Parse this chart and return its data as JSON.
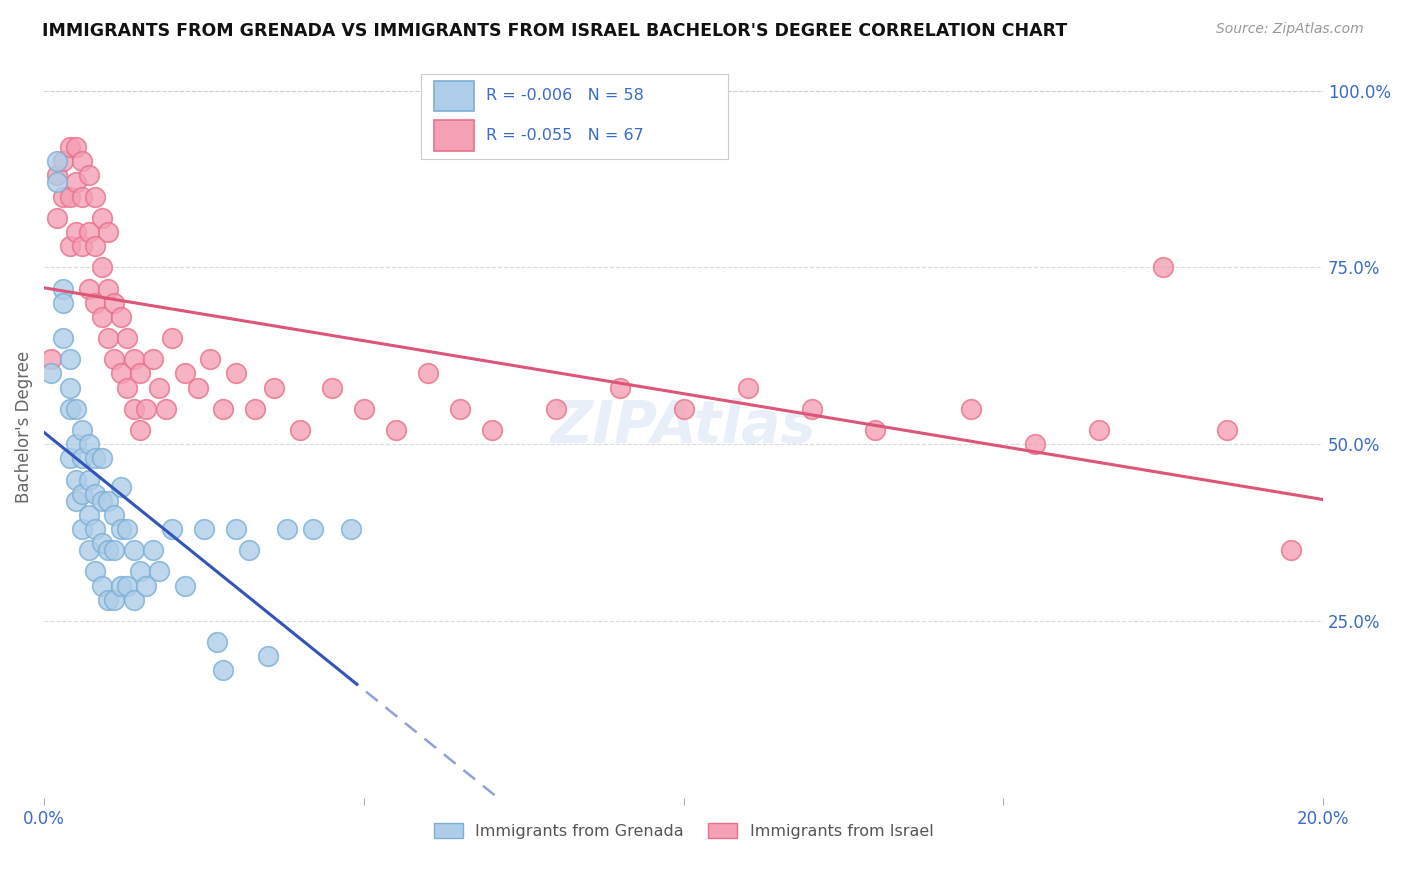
{
  "title": "IMMIGRANTS FROM GRENADA VS IMMIGRANTS FROM ISRAEL BACHELOR'S DEGREE CORRELATION CHART",
  "source": "Source: ZipAtlas.com",
  "ylabel": "Bachelor's Degree",
  "legend_label1": "Immigrants from Grenada",
  "legend_label2": "Immigrants from Israel",
  "legend_r1": "R = -0.006",
  "legend_n1": "N = 58",
  "legend_r2": "R = -0.055",
  "legend_n2": "N = 67",
  "color_blue_fill": "#aecde8",
  "color_blue_edge": "#7bafd4",
  "color_pink_fill": "#f4a0b5",
  "color_pink_edge": "#e8708a",
  "color_line_blue": "#3355bb",
  "color_line_pink": "#dd5577",
  "color_text_blue": "#3a6bc8",
  "color_grid": "#cccccc",
  "grenada_x": [
    0.001,
    0.002,
    0.002,
    0.003,
    0.003,
    0.003,
    0.004,
    0.004,
    0.004,
    0.004,
    0.005,
    0.005,
    0.005,
    0.005,
    0.006,
    0.006,
    0.006,
    0.006,
    0.007,
    0.007,
    0.007,
    0.007,
    0.008,
    0.008,
    0.008,
    0.008,
    0.009,
    0.009,
    0.009,
    0.009,
    0.01,
    0.01,
    0.01,
    0.011,
    0.011,
    0.011,
    0.012,
    0.012,
    0.012,
    0.013,
    0.013,
    0.014,
    0.014,
    0.015,
    0.016,
    0.017,
    0.018,
    0.02,
    0.022,
    0.025,
    0.027,
    0.028,
    0.03,
    0.032,
    0.035,
    0.038,
    0.042,
    0.048
  ],
  "grenada_y": [
    0.6,
    0.87,
    0.9,
    0.72,
    0.65,
    0.7,
    0.55,
    0.62,
    0.48,
    0.58,
    0.42,
    0.5,
    0.45,
    0.55,
    0.38,
    0.43,
    0.48,
    0.52,
    0.35,
    0.4,
    0.45,
    0.5,
    0.32,
    0.38,
    0.43,
    0.48,
    0.3,
    0.36,
    0.42,
    0.48,
    0.28,
    0.35,
    0.42,
    0.28,
    0.35,
    0.4,
    0.3,
    0.38,
    0.44,
    0.3,
    0.38,
    0.28,
    0.35,
    0.32,
    0.3,
    0.35,
    0.32,
    0.38,
    0.3,
    0.38,
    0.22,
    0.18,
    0.38,
    0.35,
    0.2,
    0.38,
    0.38,
    0.38
  ],
  "israel_x": [
    0.001,
    0.002,
    0.002,
    0.003,
    0.003,
    0.004,
    0.004,
    0.004,
    0.005,
    0.005,
    0.005,
    0.006,
    0.006,
    0.006,
    0.007,
    0.007,
    0.007,
    0.008,
    0.008,
    0.008,
    0.009,
    0.009,
    0.009,
    0.01,
    0.01,
    0.01,
    0.011,
    0.011,
    0.012,
    0.012,
    0.013,
    0.013,
    0.014,
    0.014,
    0.015,
    0.015,
    0.016,
    0.017,
    0.018,
    0.019,
    0.02,
    0.022,
    0.024,
    0.026,
    0.028,
    0.03,
    0.033,
    0.036,
    0.04,
    0.045,
    0.05,
    0.055,
    0.06,
    0.065,
    0.07,
    0.08,
    0.09,
    0.1,
    0.11,
    0.12,
    0.13,
    0.145,
    0.155,
    0.165,
    0.175,
    0.185,
    0.195
  ],
  "israel_y": [
    0.62,
    0.88,
    0.82,
    0.9,
    0.85,
    0.78,
    0.85,
    0.92,
    0.8,
    0.87,
    0.92,
    0.78,
    0.85,
    0.9,
    0.72,
    0.8,
    0.88,
    0.7,
    0.78,
    0.85,
    0.68,
    0.75,
    0.82,
    0.65,
    0.72,
    0.8,
    0.62,
    0.7,
    0.6,
    0.68,
    0.58,
    0.65,
    0.55,
    0.62,
    0.52,
    0.6,
    0.55,
    0.62,
    0.58,
    0.55,
    0.65,
    0.6,
    0.58,
    0.62,
    0.55,
    0.6,
    0.55,
    0.58,
    0.52,
    0.58,
    0.55,
    0.52,
    0.6,
    0.55,
    0.52,
    0.55,
    0.58,
    0.55,
    0.58,
    0.55,
    0.52,
    0.55,
    0.5,
    0.52,
    0.75,
    0.52,
    0.35
  ],
  "xlim": [
    0.0,
    0.2
  ],
  "ylim": [
    0.0,
    1.05
  ],
  "xtick_positions": [
    0.0,
    0.05,
    0.1,
    0.15,
    0.2
  ],
  "ytick_positions": [
    0.25,
    0.5,
    0.75,
    1.0
  ],
  "ytick_labels": [
    "25.0%",
    "50.0%",
    "75.0%",
    "100.0%"
  ]
}
